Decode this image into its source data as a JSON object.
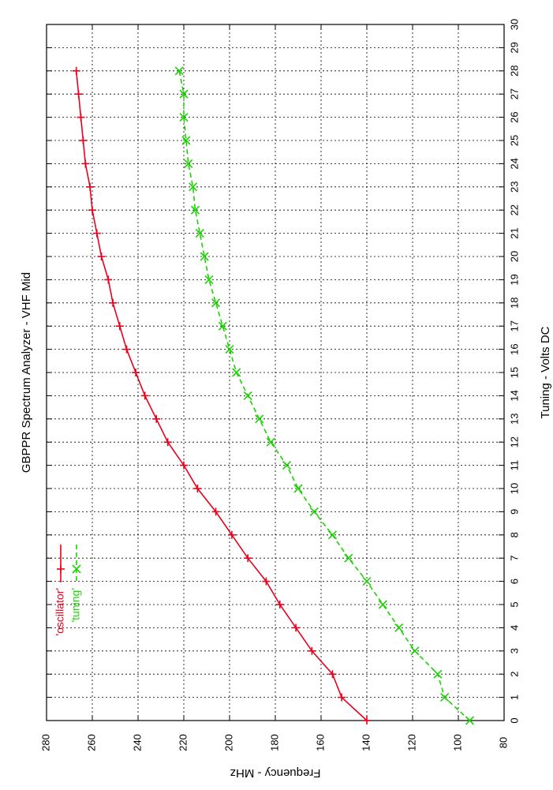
{
  "chart_data": {
    "type": "line",
    "title": "GBPPR Spectrum Analyzer  -  VHF Mid",
    "xlabel": "Tuning  -  Volts DC",
    "ylabel": "Frequency  -  MHz",
    "xlim": [
      0,
      30
    ],
    "ylim": [
      80,
      280
    ],
    "x_ticks": [
      "0",
      "1",
      "2",
      "3",
      "4",
      "5",
      "6",
      "7",
      "8",
      "9",
      "10",
      "11",
      "12",
      "13",
      "14",
      "15",
      "16",
      "17",
      "18",
      "19",
      "20",
      "21",
      "22",
      "23",
      "24",
      "25",
      "26",
      "27",
      "28",
      "29",
      "30"
    ],
    "y_ticks": [
      "80",
      "100",
      "120",
      "140",
      "160",
      "180",
      "200",
      "220",
      "240",
      "260",
      "280"
    ],
    "grid": true,
    "legend_position": "top-left",
    "orientation": "rotated 90 degrees counter-clockwise",
    "series": [
      {
        "name": "'oscillator'",
        "color": "#e8001c",
        "marker": "plus",
        "line_style": "solid",
        "x": [
          0,
          1,
          2,
          3,
          4,
          5,
          6,
          7,
          8,
          9,
          10,
          11,
          12,
          13,
          14,
          15,
          16,
          17,
          18,
          19,
          20,
          21,
          22,
          23,
          24,
          25,
          26,
          27,
          28
        ],
        "y": [
          140,
          151,
          155,
          164,
          171,
          178,
          184,
          192,
          199,
          206,
          214,
          220,
          227,
          232,
          237,
          241,
          245,
          248,
          251,
          253,
          256,
          258,
          260,
          261,
          263,
          264,
          265,
          266,
          267
        ]
      },
      {
        "name": "'tuning'",
        "color": "#19d400",
        "marker": "x",
        "line_style": "dashed",
        "x": [
          0,
          1,
          2,
          3,
          4,
          5,
          6,
          7,
          8,
          9,
          10,
          11,
          12,
          13,
          14,
          15,
          16,
          17,
          18,
          19,
          20,
          21,
          22,
          23,
          24,
          25,
          26,
          27,
          28
        ],
        "y": [
          95,
          106,
          109,
          119,
          126,
          133,
          140,
          148,
          155,
          163,
          170,
          175,
          182,
          187,
          192,
          197,
          200,
          203,
          206,
          209,
          211,
          213,
          215,
          216,
          218,
          219,
          220,
          220,
          222
        ]
      }
    ]
  }
}
